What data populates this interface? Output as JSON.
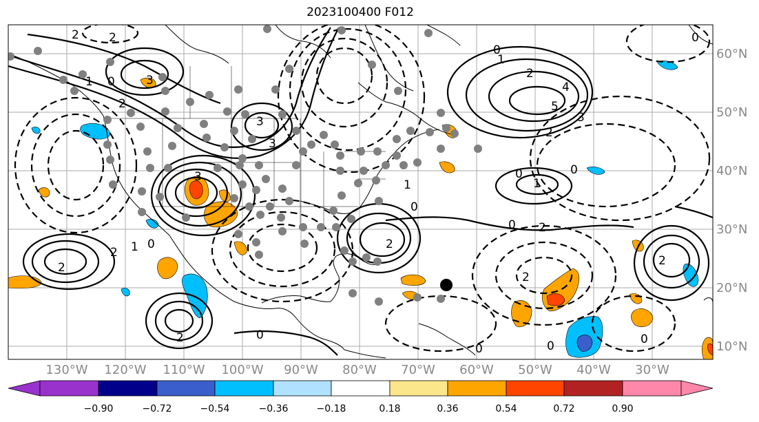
{
  "title": "2023100400 F012",
  "lon_labels": [
    "130°W",
    "120°W",
    "110°W",
    "100°W",
    "90°W",
    "80°W",
    "70°W",
    "60°W",
    "50°W",
    "40°W",
    "30°W"
  ],
  "lat_labels": [
    "60°N",
    "50°N",
    "40°N",
    "30°N",
    "20°N",
    "10°N"
  ],
  "colorbar": {
    "ticks": [
      "−0.90",
      "−0.72",
      "−0.54",
      "−0.36",
      "−0.18",
      "0.18",
      "0.36",
      "0.54",
      "0.72",
      "0.90"
    ],
    "colors": [
      "#9932cc",
      "#00008b",
      "#3a5fcd",
      "#00bfff",
      "#b0e2ff",
      "#ffffff",
      "#fce68c",
      "#ffa500",
      "#ff4500",
      "#b22222",
      "#ff88aa"
    ]
  },
  "contour_labels": [
    "2",
    "2",
    "3",
    "0",
    "1",
    "2",
    "3",
    "3",
    "3",
    "0",
    "1",
    "2",
    "4",
    "5",
    "3",
    "2",
    "0",
    "0",
    "1",
    "0",
    "2",
    "2",
    "2",
    "1",
    "0",
    "2",
    "2",
    "2",
    "0",
    "0",
    "0",
    "0",
    "2",
    "1",
    "0",
    "0"
  ],
  "markers": {
    "large_dot": "black-circle",
    "small_dots": "gray-circles"
  }
}
